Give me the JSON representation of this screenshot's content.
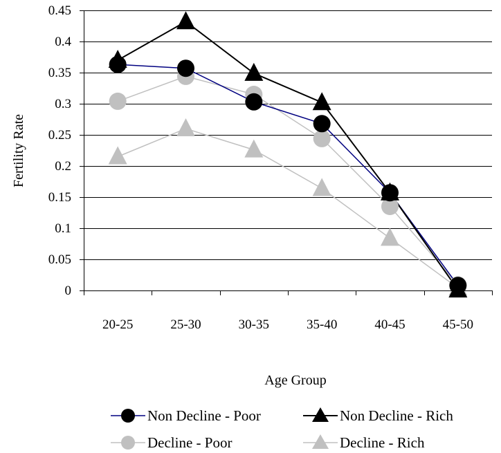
{
  "chart_data": {
    "type": "line",
    "title": "",
    "xlabel": "Age Group",
    "ylabel": "Fertility Rate",
    "categories": [
      "20-25",
      "25-30",
      "30-35",
      "35-40",
      "40-45",
      "45-50"
    ],
    "ylim": [
      0,
      0.45
    ],
    "yticks": [
      "0",
      "0.05",
      "0.1",
      "0.15",
      "0.2",
      "0.25",
      "0.3",
      "0.35",
      "0.4",
      "0.45"
    ],
    "grid": "horizontal",
    "legend_position": "bottom",
    "series": [
      {
        "name": "Non Decline - Poor",
        "values": [
          0.363,
          0.357,
          0.303,
          0.268,
          0.157,
          0.008
        ],
        "line_color": "#000080",
        "marker": "circle",
        "marker_color": "#000000"
      },
      {
        "name": "Non Decline - Rich",
        "values": [
          0.37,
          0.432,
          0.349,
          0.302,
          0.157,
          0.001
        ],
        "line_color": "#000000",
        "marker": "triangle",
        "marker_color": "#000000"
      },
      {
        "name": "Decline - Poor",
        "values": [
          0.304,
          0.344,
          0.315,
          0.244,
          0.135,
          0.009
        ],
        "line_color": "#c0c0c0",
        "marker": "circle",
        "marker_color": "#c0c0c0"
      },
      {
        "name": "Decline - Rich",
        "values": [
          0.215,
          0.26,
          0.226,
          0.164,
          0.084,
          0.004
        ],
        "line_color": "#c0c0c0",
        "marker": "triangle",
        "marker_color": "#c0c0c0"
      }
    ]
  }
}
